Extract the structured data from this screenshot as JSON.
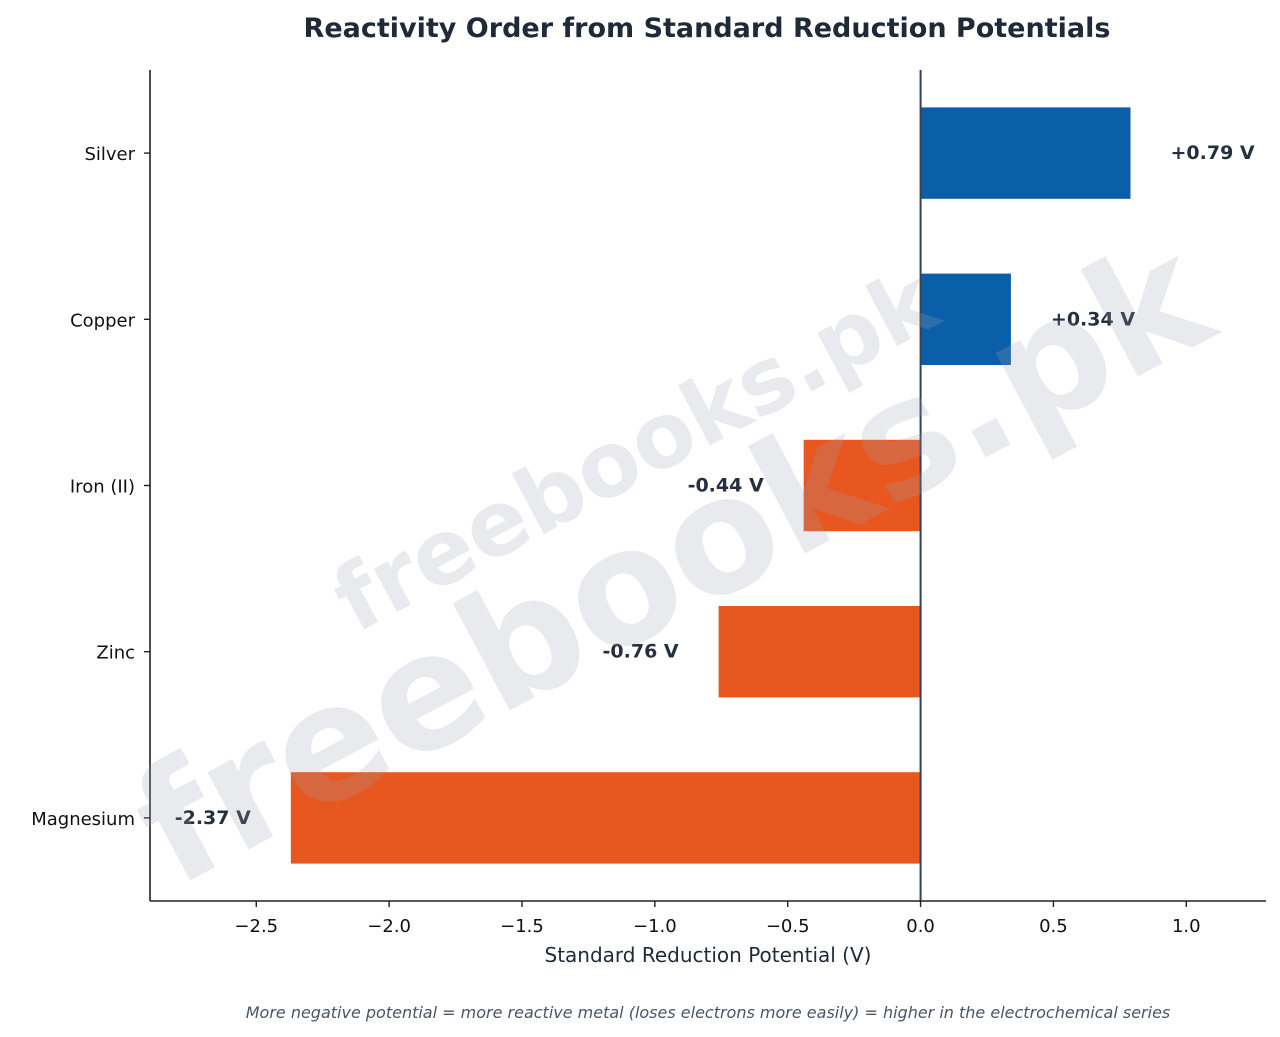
{
  "chart_data": {
    "type": "bar",
    "orientation": "horizontal",
    "title": "Reactivity Order from Standard Reduction Potentials",
    "xlabel": "Standard Reduction Potential (V)",
    "ylabel": "",
    "categories": [
      "Silver",
      "Copper",
      "Iron (II)",
      "Zinc",
      "Magnesium"
    ],
    "values": [
      0.79,
      0.34,
      -0.44,
      -0.76,
      -2.37
    ],
    "value_labels": [
      "+0.79 V",
      "+0.34 V",
      "-0.44 V",
      "-0.76 V",
      "-2.37 V"
    ],
    "xlim": [
      -2.9,
      1.3
    ],
    "xticks": [
      -2.5,
      -2.0,
      -1.5,
      -1.0,
      -0.5,
      0.0,
      0.5,
      1.0
    ],
    "xtick_labels": [
      "−2.5",
      "−2.0",
      "−1.5",
      "−1.0",
      "−0.5",
      "0.0",
      "0.5",
      "1.0"
    ],
    "zero_line": true,
    "grid": false,
    "colors": {
      "positive": "#0b5fa8",
      "negative": "#e85720"
    },
    "footnote": "More negative potential = more reactive metal (loses electrons more easily) = higher in the electrochemical series"
  },
  "watermark": "freebooks.pk"
}
